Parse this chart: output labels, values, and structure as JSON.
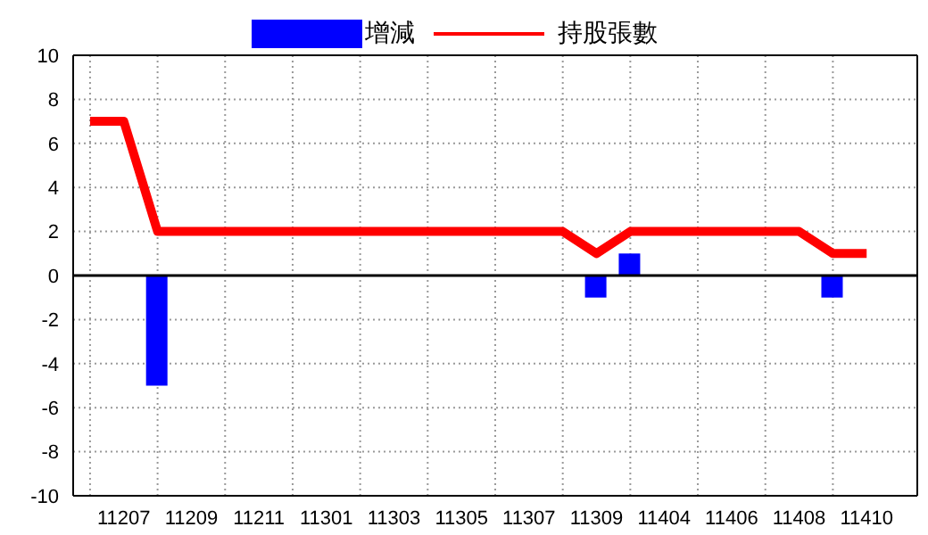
{
  "chart_data": {
    "type": "bar",
    "categories": [
      null,
      "11207",
      null,
      "11209",
      null,
      "11211",
      null,
      "11301",
      null,
      "11303",
      null,
      "11305",
      null,
      "11307",
      null,
      "11309",
      null,
      "11404",
      null,
      "11406",
      null,
      "11408",
      null,
      "11410"
    ],
    "series": [
      {
        "name": "增減",
        "color": "#0000ff",
        "values": [
          null,
          null,
          -5,
          null,
          null,
          null,
          null,
          null,
          null,
          null,
          null,
          null,
          null,
          null,
          null,
          -1,
          1,
          null,
          null,
          null,
          null,
          null,
          -1,
          null
        ]
      },
      {
        "name": "持股張數",
        "type": "line",
        "color": "#ff0000",
        "values": [
          7,
          7,
          2,
          2,
          2,
          2,
          2,
          2,
          2,
          2,
          2,
          2,
          2,
          2,
          2,
          1,
          2,
          2,
          2,
          2,
          2,
          2,
          1,
          1
        ]
      }
    ],
    "ylim": [
      -10,
      10
    ],
    "yticks": [
      -10,
      -8,
      -6,
      -4,
      -2,
      0,
      2,
      4,
      6,
      8,
      10
    ],
    "grid": true,
    "legend": "top",
    "marker": "none",
    "line_style": "solid"
  }
}
